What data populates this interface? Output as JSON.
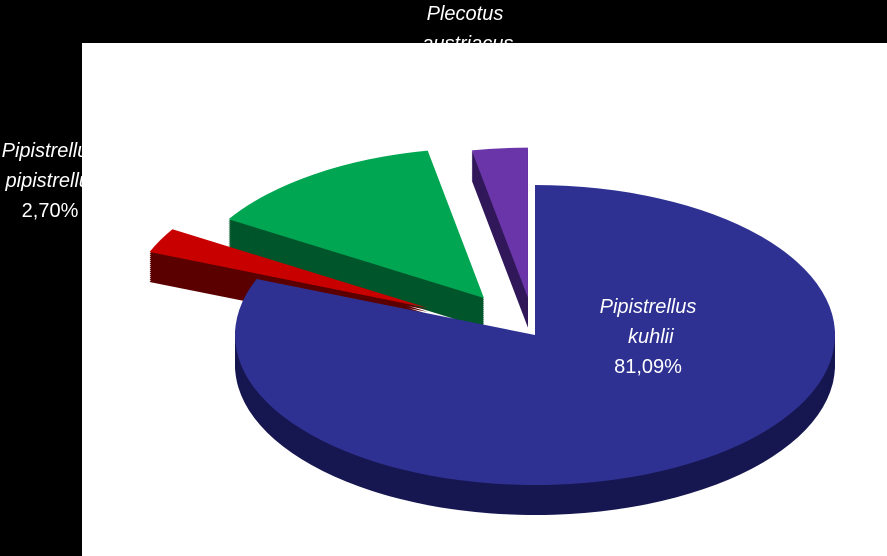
{
  "chart_data": {
    "type": "pie",
    "categories": [
      "Pipistrellus kuhlii",
      "Pipistrellus pipistrellus",
      null,
      "Plecotus austriacus"
    ],
    "values": [
      81.09,
      2.7,
      13.21,
      3.0
    ],
    "value_labels": [
      "81,09%",
      "2,70%",
      null,
      null
    ],
    "colors": [
      "#2e3192",
      "#c80000",
      "#00a651",
      "#6a35a8"
    ],
    "side_colors": [
      "#161650",
      "#5a0000",
      "#00552a",
      "#30185a"
    ]
  }
}
